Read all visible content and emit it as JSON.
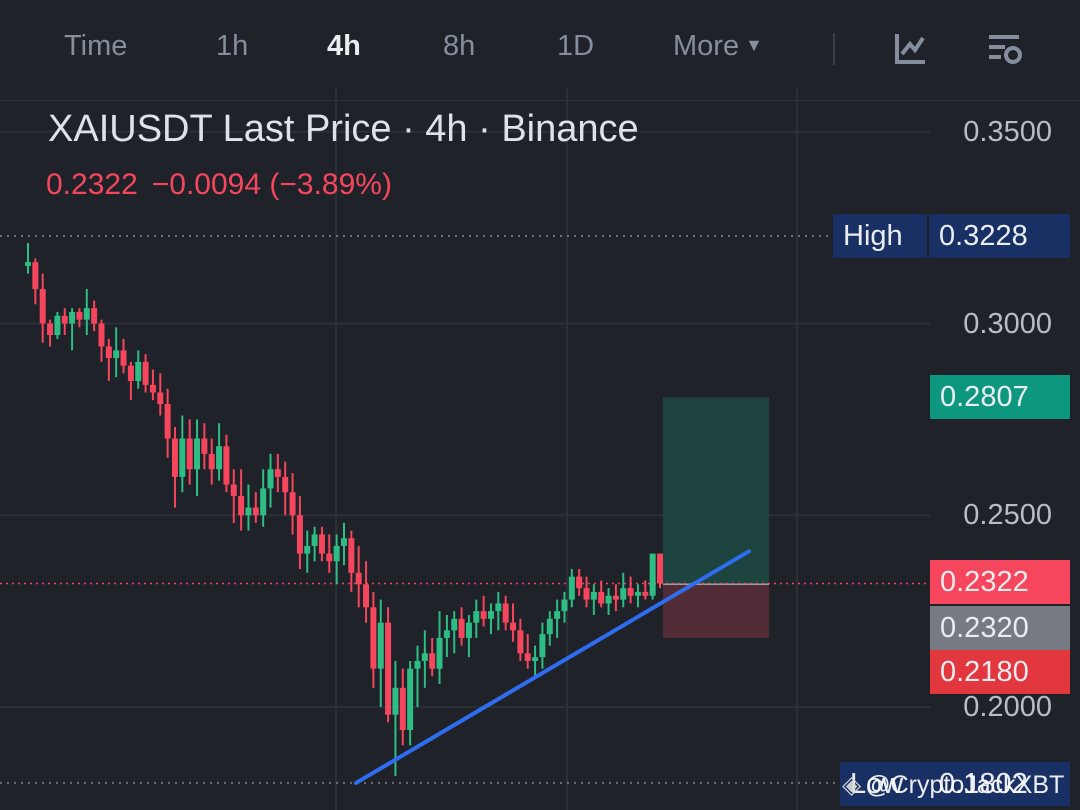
{
  "toolbar": {
    "tabs": [
      {
        "label": "Time",
        "active": false
      },
      {
        "label": "1h",
        "active": false
      },
      {
        "label": "4h",
        "active": true
      },
      {
        "label": "8h",
        "active": false
      },
      {
        "label": "1D",
        "active": false
      }
    ],
    "more_label": "More",
    "icons": [
      "indicator-icon",
      "chart-settings-icon"
    ]
  },
  "header": {
    "title": "XAIUSDT Last Price · 4h · Binance",
    "last_price": "0.2322",
    "change_abs": "−0.0094",
    "change_pct": "(−3.89%)"
  },
  "axis": {
    "labels": [
      "0.3500",
      "0.3000",
      "0.2500",
      "0.2000"
    ]
  },
  "markers": {
    "high_label": "High",
    "high_value": "0.3228",
    "low_label": "Low",
    "low_value": "0.1802"
  },
  "position_tool": {
    "take_profit": "0.2807",
    "last": "0.2322",
    "entry": "0.2320",
    "stop_loss": "0.2180"
  },
  "watermark": "@CryptoJackXBT",
  "colors": {
    "up": "#2ebd85",
    "down": "#f6465d",
    "trendline": "#2f6df0",
    "background": "#1f2228"
  },
  "chart_data": {
    "type": "candlestick",
    "symbol": "XAIUSDT",
    "interval": "4h",
    "ylim": [
      0.175,
      0.36
    ],
    "y_ticks": [
      0.35,
      0.3,
      0.25,
      0.2
    ],
    "high": 0.3228,
    "low": 0.1802,
    "last": 0.2322,
    "candles": [
      [
        0.315,
        0.321,
        0.313,
        0.316
      ],
      [
        0.316,
        0.317,
        0.305,
        0.309
      ],
      [
        0.309,
        0.313,
        0.295,
        0.3
      ],
      [
        0.3,
        0.301,
        0.294,
        0.297
      ],
      [
        0.297,
        0.303,
        0.296,
        0.302
      ],
      [
        0.302,
        0.304,
        0.297,
        0.3
      ],
      [
        0.3,
        0.304,
        0.293,
        0.303
      ],
      [
        0.303,
        0.304,
        0.299,
        0.301
      ],
      [
        0.301,
        0.309,
        0.297,
        0.304
      ],
      [
        0.304,
        0.306,
        0.298,
        0.3
      ],
      [
        0.3,
        0.301,
        0.29,
        0.294
      ],
      [
        0.294,
        0.296,
        0.285,
        0.291
      ],
      [
        0.291,
        0.299,
        0.286,
        0.293
      ],
      [
        0.293,
        0.296,
        0.287,
        0.289
      ],
      [
        0.289,
        0.29,
        0.28,
        0.285
      ],
      [
        0.285,
        0.293,
        0.283,
        0.29
      ],
      [
        0.29,
        0.292,
        0.282,
        0.284
      ],
      [
        0.284,
        0.288,
        0.28,
        0.282
      ],
      [
        0.282,
        0.287,
        0.276,
        0.279
      ],
      [
        0.279,
        0.283,
        0.265,
        0.27
      ],
      [
        0.27,
        0.273,
        0.252,
        0.26
      ],
      [
        0.26,
        0.276,
        0.256,
        0.27
      ],
      [
        0.27,
        0.275,
        0.258,
        0.262
      ],
      [
        0.262,
        0.275,
        0.255,
        0.27
      ],
      [
        0.27,
        0.274,
        0.262,
        0.266
      ],
      [
        0.266,
        0.27,
        0.258,
        0.262
      ],
      [
        0.262,
        0.274,
        0.259,
        0.268
      ],
      [
        0.268,
        0.271,
        0.256,
        0.258
      ],
      [
        0.258,
        0.262,
        0.248,
        0.255
      ],
      [
        0.255,
        0.262,
        0.246,
        0.25
      ],
      [
        0.25,
        0.258,
        0.246,
        0.252
      ],
      [
        0.252,
        0.256,
        0.248,
        0.25
      ],
      [
        0.25,
        0.262,
        0.247,
        0.257
      ],
      [
        0.257,
        0.266,
        0.252,
        0.262
      ],
      [
        0.262,
        0.266,
        0.256,
        0.26
      ],
      [
        0.26,
        0.264,
        0.25,
        0.256
      ],
      [
        0.256,
        0.261,
        0.245,
        0.25
      ],
      [
        0.25,
        0.255,
        0.236,
        0.24
      ],
      [
        0.24,
        0.246,
        0.235,
        0.242
      ],
      [
        0.242,
        0.247,
        0.238,
        0.245
      ],
      [
        0.245,
        0.247,
        0.238,
        0.24
      ],
      [
        0.24,
        0.245,
        0.235,
        0.238
      ],
      [
        0.238,
        0.245,
        0.232,
        0.242
      ],
      [
        0.242,
        0.248,
        0.237,
        0.244
      ],
      [
        0.244,
        0.246,
        0.23,
        0.235
      ],
      [
        0.235,
        0.242,
        0.226,
        0.232
      ],
      [
        0.232,
        0.238,
        0.222,
        0.226
      ],
      [
        0.226,
        0.23,
        0.205,
        0.21
      ],
      [
        0.21,
        0.228,
        0.2,
        0.222
      ],
      [
        0.222,
        0.226,
        0.196,
        0.198
      ],
      [
        0.198,
        0.212,
        0.182,
        0.205
      ],
      [
        0.205,
        0.21,
        0.19,
        0.194
      ],
      [
        0.194,
        0.212,
        0.19,
        0.21
      ],
      [
        0.21,
        0.216,
        0.2,
        0.212
      ],
      [
        0.212,
        0.22,
        0.205,
        0.214
      ],
      [
        0.214,
        0.218,
        0.208,
        0.21
      ],
      [
        0.21,
        0.225,
        0.206,
        0.218
      ],
      [
        0.218,
        0.224,
        0.213,
        0.22
      ],
      [
        0.22,
        0.225,
        0.214,
        0.223
      ],
      [
        0.223,
        0.226,
        0.216,
        0.218
      ],
      [
        0.218,
        0.224,
        0.213,
        0.222
      ],
      [
        0.222,
        0.228,
        0.218,
        0.225
      ],
      [
        0.225,
        0.229,
        0.221,
        0.223
      ],
      [
        0.223,
        0.227,
        0.219,
        0.225
      ],
      [
        0.225,
        0.23,
        0.22,
        0.227
      ],
      [
        0.227,
        0.229,
        0.22,
        0.222
      ],
      [
        0.222,
        0.227,
        0.217,
        0.22
      ],
      [
        0.22,
        0.223,
        0.212,
        0.214
      ],
      [
        0.214,
        0.219,
        0.21,
        0.212
      ],
      [
        0.212,
        0.216,
        0.208,
        0.213
      ],
      [
        0.213,
        0.222,
        0.21,
        0.219
      ],
      [
        0.219,
        0.225,
        0.216,
        0.223
      ],
      [
        0.223,
        0.228,
        0.218,
        0.225
      ],
      [
        0.225,
        0.23,
        0.222,
        0.228
      ],
      [
        0.228,
        0.236,
        0.226,
        0.234
      ],
      [
        0.234,
        0.236,
        0.229,
        0.231
      ],
      [
        0.231,
        0.234,
        0.226,
        0.228
      ],
      [
        0.228,
        0.232,
        0.224,
        0.23
      ],
      [
        0.23,
        0.233,
        0.226,
        0.227
      ],
      [
        0.227,
        0.231,
        0.224,
        0.229
      ],
      [
        0.229,
        0.232,
        0.225,
        0.228
      ],
      [
        0.228,
        0.235,
        0.226,
        0.231
      ],
      [
        0.231,
        0.234,
        0.227,
        0.229
      ],
      [
        0.229,
        0.232,
        0.226,
        0.23
      ],
      [
        0.23,
        0.233,
        0.228,
        0.229
      ],
      [
        0.229,
        0.24,
        0.228,
        0.24
      ],
      [
        0.24,
        0.24,
        0.231,
        0.2322
      ]
    ],
    "trendline": {
      "from": 0.1802,
      "to": 0.2406
    },
    "position": {
      "take_profit": 0.2807,
      "entry": 0.232,
      "stop_loss": 0.218
    }
  }
}
